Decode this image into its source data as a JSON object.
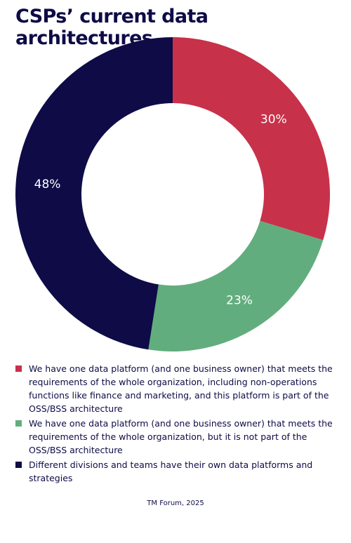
{
  "chart_data": {
    "type": "pie",
    "title": "CSPs’ current data architectures",
    "categories": [
      "We have one data platform (and one business owner) that meets the requirements of the whole organization, including non-operations functions like finance and marketing, and this platform is part of the OSS/BSS architecture",
      "We have one data platform (and one business owner) that meets the requirements of the whole organization, but it is not part of the OSS/BSS architecture",
      "Different divisions and teams have their own data platforms and strategies"
    ],
    "values": [
      30,
      23,
      48
    ],
    "value_labels": [
      "30%",
      "23%",
      "48%"
    ],
    "colors": [
      "#c8314a",
      "#62ad7e",
      "#0e0b46"
    ],
    "donut": true,
    "start": "12 o'clock, clockwise",
    "legend": "bottom"
  },
  "source": "TM Forum, 2025"
}
